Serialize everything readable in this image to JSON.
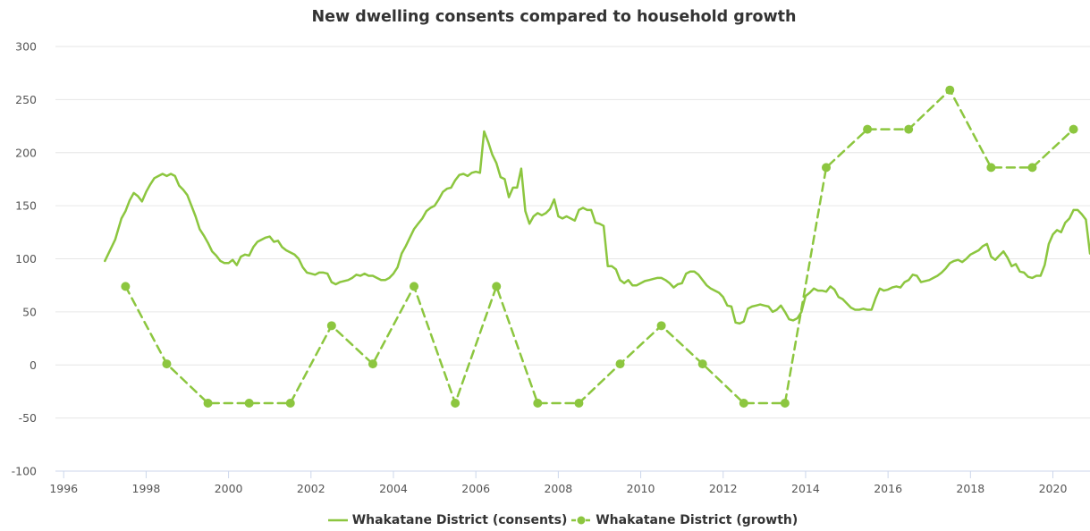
{
  "chart_data": {
    "type": "line",
    "title": "New dwelling consents compared to household growth",
    "xlabel": "",
    "ylabel": "",
    "xlim": [
      1995.8,
      2020.9
    ],
    "ylim": [
      -100,
      300
    ],
    "y_ticks": [
      -100,
      -50,
      0,
      50,
      100,
      150,
      200,
      250,
      300
    ],
    "x_ticks": [
      1996,
      1998,
      2000,
      2002,
      2004,
      2006,
      2008,
      2010,
      2012,
      2014,
      2016,
      2018,
      2020
    ],
    "grid": "horizontal",
    "legend_position": "bottom",
    "color": "#8cc63f",
    "series": [
      {
        "name": "Whakatane District (consents)",
        "style": "solid",
        "markers": false,
        "x": [
          1997.0,
          1997.25,
          1997.4,
          1997.5,
          1997.6,
          1997.7,
          1997.8,
          1997.9,
          1998.0,
          1998.1,
          1998.2,
          1998.3,
          1998.4,
          1998.5,
          1998.6,
          1998.7,
          1998.8,
          1998.9,
          1999.0,
          1999.1,
          1999.2,
          1999.3,
          1999.4,
          1999.5,
          1999.6,
          1999.7,
          1999.8,
          1999.9,
          2000.0,
          2000.1,
          2000.2,
          2000.3,
          2000.4,
          2000.5,
          2000.6,
          2000.7,
          2000.8,
          2000.9,
          2001.0,
          2001.1,
          2001.2,
          2001.3,
          2001.4,
          2001.5,
          2001.6,
          2001.7,
          2001.8,
          2001.9,
          2002.0,
          2002.1,
          2002.2,
          2002.3,
          2002.4,
          2002.5,
          2002.6,
          2002.7,
          2002.8,
          2002.9,
          2003.0,
          2003.1,
          2003.2,
          2003.3,
          2003.4,
          2003.5,
          2003.6,
          2003.7,
          2003.8,
          2003.9,
          2004.0,
          2004.1,
          2004.2,
          2004.3,
          2004.4,
          2004.5,
          2004.6,
          2004.7,
          2004.8,
          2004.9,
          2005.0,
          2005.1,
          2005.2,
          2005.3,
          2005.4,
          2005.5,
          2005.6,
          2005.7,
          2005.8,
          2005.9,
          2006.0,
          2006.1,
          2006.2,
          2006.3,
          2006.4,
          2006.5,
          2006.6,
          2006.7,
          2006.8,
          2006.9,
          2007.0,
          2007.1,
          2007.2,
          2007.3,
          2007.4,
          2007.5,
          2007.6,
          2007.7,
          2007.8,
          2007.9,
          2008.0,
          2008.1,
          2008.2,
          2008.3,
          2008.4,
          2008.5,
          2008.6,
          2008.7,
          2008.8,
          2008.9,
          2009.0,
          2009.1,
          2009.2,
          2009.3,
          2009.4,
          2009.5,
          2009.6,
          2009.7,
          2009.8,
          2009.9,
          2010.0,
          2010.1,
          2010.2,
          2010.3,
          2010.4,
          2010.5,
          2010.6,
          2010.7,
          2010.8,
          2010.9,
          2011.0,
          2011.1,
          2011.2,
          2011.3,
          2011.4,
          2011.5,
          2011.6,
          2011.7,
          2011.8,
          2011.9,
          2012.0,
          2012.1,
          2012.2,
          2012.3,
          2012.4,
          2012.5,
          2012.6,
          2012.7,
          2012.8,
          2012.9,
          2013.0,
          2013.1,
          2013.2,
          2013.3,
          2013.4,
          2013.5,
          2013.6,
          2013.7,
          2013.8,
          2013.9,
          2014.0,
          2014.1,
          2014.2,
          2014.3,
          2014.4,
          2014.5,
          2014.6,
          2014.7,
          2014.8,
          2014.9,
          2015.0,
          2015.1,
          2015.2,
          2015.3,
          2015.4,
          2015.5,
          2015.6,
          2015.7,
          2015.8,
          2015.9,
          2016.0,
          2016.1,
          2016.2,
          2016.3,
          2016.4,
          2016.5,
          2016.6,
          2016.7,
          2016.8,
          2016.9,
          2017.0,
          2017.1,
          2017.2,
          2017.3,
          2017.4,
          2017.5,
          2017.6,
          2017.7,
          2017.8,
          2017.9,
          2018.0,
          2018.1,
          2018.2,
          2018.3,
          2018.4,
          2018.5,
          2018.6,
          2018.7,
          2018.8,
          2018.9,
          2019.0,
          2019.1,
          2019.2,
          2019.3,
          2019.4,
          2019.5,
          2019.6,
          2019.7,
          2019.8,
          2019.9,
          2020.0,
          2020.1,
          2020.2,
          2020.3,
          2020.4,
          2020.5,
          2020.6,
          2020.7,
          2020.8,
          2020.9
        ],
        "y": [
          98,
          118,
          138,
          145,
          155,
          162,
          159,
          154,
          163,
          170,
          176,
          178,
          180,
          178,
          180,
          178,
          169,
          165,
          160,
          150,
          140,
          128,
          122,
          115,
          107,
          103,
          98,
          96,
          96,
          99,
          94,
          102,
          104,
          103,
          111,
          116,
          118,
          120,
          121,
          116,
          117,
          111,
          108,
          106,
          104,
          100,
          92,
          87,
          86,
          85,
          87,
          87,
          86,
          78,
          76,
          78,
          79,
          80,
          82,
          85,
          84,
          86,
          84,
          84,
          82,
          80,
          80,
          82,
          86,
          92,
          105,
          112,
          120,
          128,
          133,
          138,
          145,
          148,
          150,
          156,
          163,
          166,
          167,
          174,
          179,
          180,
          178,
          181,
          182,
          181,
          220,
          210,
          198,
          190,
          177,
          175,
          158,
          167,
          167,
          185,
          145,
          133,
          140,
          143,
          141,
          143,
          147,
          156,
          140,
          138,
          140,
          138,
          136,
          146,
          148,
          146,
          146,
          134,
          133,
          131,
          93,
          93,
          90,
          80,
          77,
          80,
          75,
          75,
          77,
          79,
          80,
          81,
          82,
          82,
          80,
          77,
          73,
          76,
          77,
          86,
          88,
          88,
          85,
          80,
          75,
          72,
          70,
          68,
          64,
          56,
          55,
          40,
          39,
          41,
          53,
          55,
          56,
          57,
          56,
          55,
          50,
          52,
          56,
          50,
          43,
          42,
          44,
          50,
          65,
          68,
          72,
          70,
          70,
          69,
          74,
          71,
          64,
          62,
          58,
          54,
          52,
          52,
          53,
          52,
          52,
          63,
          72,
          70,
          71,
          73,
          74,
          73,
          78,
          80,
          85,
          84,
          78,
          79,
          80,
          82,
          84,
          87,
          91,
          96,
          98,
          99,
          97,
          100,
          104,
          106,
          108,
          112,
          114,
          102,
          99,
          103,
          107,
          101,
          93,
          95,
          88,
          87,
          83,
          82,
          84,
          84,
          94,
          114,
          123,
          127,
          125,
          134,
          138,
          146,
          146,
          142,
          137,
          105
        ]
      },
      {
        "name": "Whakatane District (growth)",
        "style": "dashed",
        "markers": true,
        "x": [
          1997.5,
          1998.5,
          1999.5,
          2000.5,
          2001.5,
          2002.5,
          2003.5,
          2004.5,
          2005.5,
          2006.5,
          2007.5,
          2008.5,
          2009.5,
          2010.5,
          2011.5,
          2012.5,
          2013.5,
          2014.5,
          2015.5,
          2016.5,
          2017.5,
          2018.5,
          2019.5,
          2020.5
        ],
        "y": [
          74,
          1,
          -36,
          -36,
          -36,
          37,
          1,
          74,
          -36,
          74,
          -36,
          -36,
          1,
          37,
          1,
          -36,
          -36,
          186,
          222,
          222,
          259,
          186,
          186,
          222
        ]
      }
    ]
  }
}
